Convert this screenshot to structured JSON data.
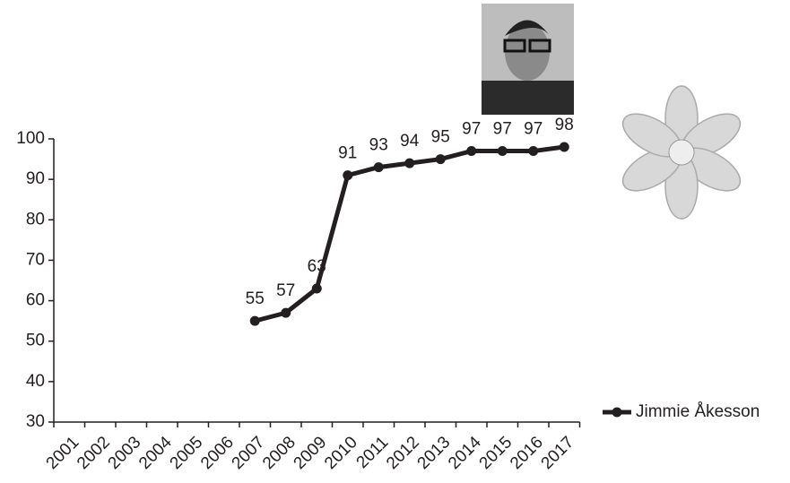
{
  "chart_data": {
    "type": "line",
    "categories": [
      "2001",
      "2002",
      "2003",
      "2004",
      "2005",
      "2006",
      "2007",
      "2008",
      "2009",
      "2010",
      "2011",
      "2012",
      "2013",
      "2014",
      "2015",
      "2016",
      "2017"
    ],
    "series": [
      {
        "name": "Jimmie Åkesson",
        "color": "#231f20",
        "values": [
          null,
          null,
          null,
          null,
          null,
          null,
          55,
          57,
          63,
          91,
          93,
          94,
          95,
          97,
          97,
          97,
          98
        ]
      }
    ],
    "ylim": [
      30,
      100
    ],
    "yticks": [
      30,
      40,
      50,
      60,
      70,
      80,
      90,
      100
    ],
    "grid": false,
    "legend": "right"
  }
}
